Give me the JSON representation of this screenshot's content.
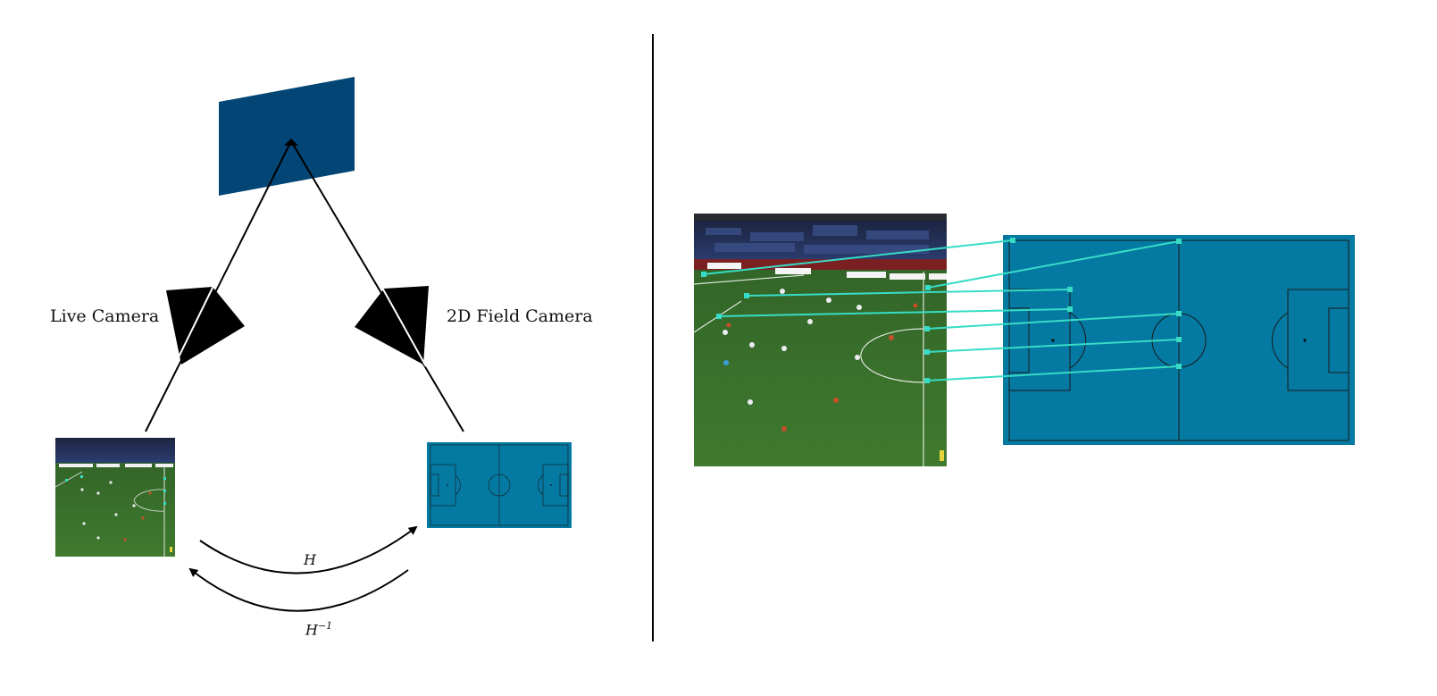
{
  "left_panel": {
    "live_camera_label": "Live Camera",
    "field_camera_label": "2D Field Camera",
    "forward_transform_label": "H",
    "inverse_transform_base": "H",
    "inverse_transform_exponent": "−1"
  },
  "colors": {
    "plane": "#034675",
    "field": "#0479a2",
    "correspondence": "#37dcc6",
    "grass": "#3a6e2b",
    "stands": "#23325a",
    "ink": "#000000"
  },
  "icons": {
    "live_camera": "camera-icon",
    "field_camera": "camera-icon",
    "forward_arrow": "curved-arrow-right-icon",
    "inverse_arrow": "curved-arrow-left-icon"
  }
}
